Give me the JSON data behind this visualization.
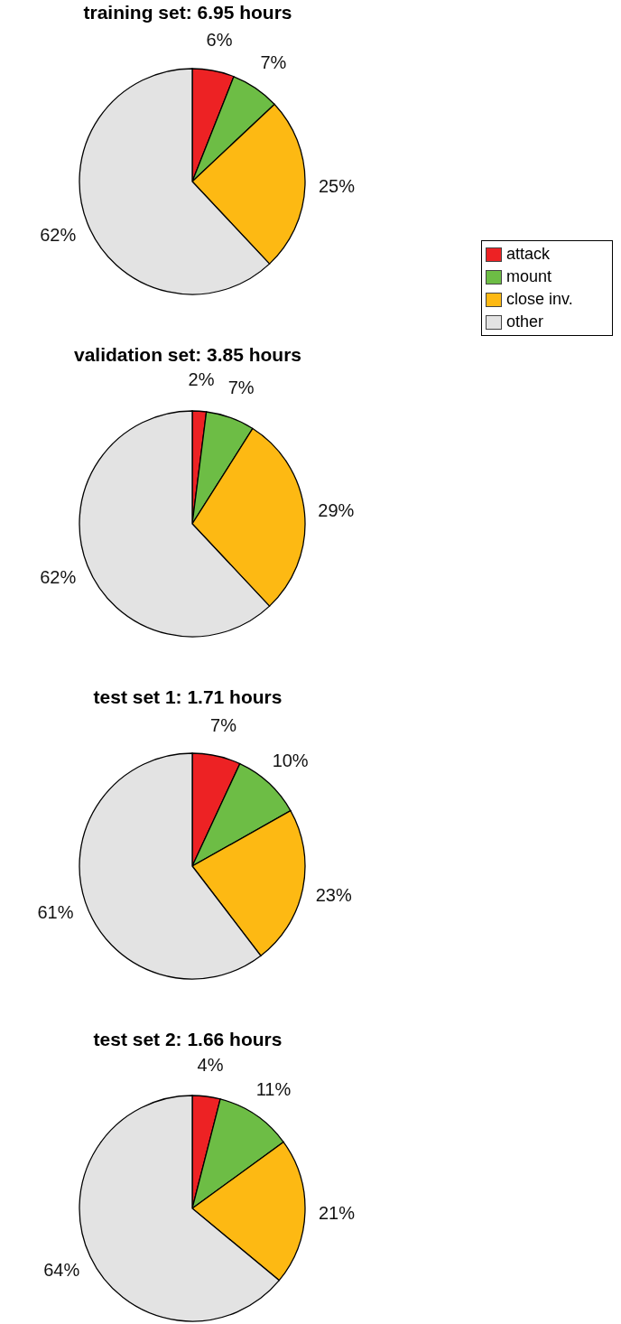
{
  "chart_data": [
    {
      "type": "pie",
      "title": "training set: 6.95 hours",
      "categories": [
        "attack",
        "mount",
        "close inv.",
        "other"
      ],
      "values": [
        6,
        7,
        25,
        62
      ],
      "value_labels": [
        "6%",
        "7%",
        "25%",
        "62%"
      ],
      "colors": [
        "#ed2224",
        "#6dbd45",
        "#fdb913",
        "#e3e3e3"
      ],
      "legend": "right"
    },
    {
      "type": "pie",
      "title": "validation set: 3.85 hours",
      "values": [
        2,
        7,
        29,
        62
      ],
      "value_labels": [
        "2%",
        "7%",
        "29%",
        "62%"
      ],
      "colors": [
        "#ed2224",
        "#6dbd45",
        "#fdb913",
        "#e3e3e3"
      ]
    },
    {
      "type": "pie",
      "title": "test set 1: 1.71 hours",
      "values": [
        7,
        10,
        23,
        61
      ],
      "value_labels": [
        "7%",
        "10%",
        "23%",
        "61%"
      ],
      "colors": [
        "#ed2224",
        "#6dbd45",
        "#fdb913",
        "#e3e3e3"
      ]
    },
    {
      "type": "pie",
      "title": "test set 2: 1.66 hours",
      "values": [
        4,
        11,
        21,
        64
      ],
      "value_labels": [
        "4%",
        "11%",
        "21%",
        "64%"
      ],
      "colors": [
        "#ed2224",
        "#6dbd45",
        "#fdb913",
        "#e3e3e3"
      ]
    }
  ]
}
